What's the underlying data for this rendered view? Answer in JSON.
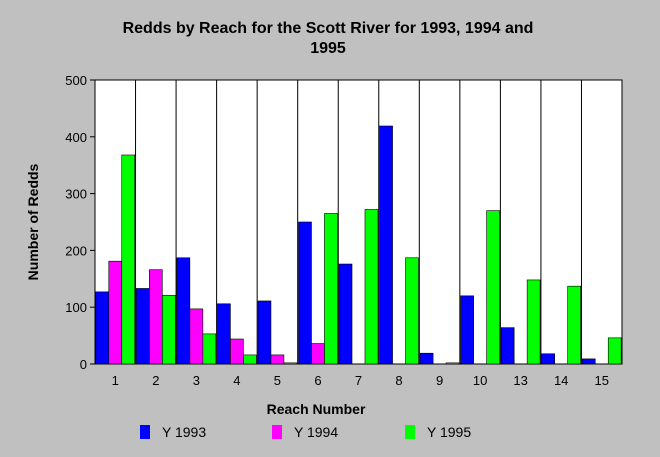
{
  "chart_data": {
    "type": "bar",
    "title": "Redds by Reach for the Scott River for 1993, 1994 and 1995",
    "title_lines": [
      "Redds by Reach for the Scott River for 1993, 1994 and",
      "1995"
    ],
    "xlabel": "Reach Number",
    "ylabel": "Number of Redds",
    "categories": [
      "1",
      "2",
      "3",
      "4",
      "5",
      "6",
      "7",
      "8",
      "9",
      "10",
      "13",
      "14",
      "15"
    ],
    "ylim": [
      0,
      500
    ],
    "yticks": [
      0,
      100,
      200,
      300,
      400,
      500
    ],
    "grid": "vertical separators",
    "legend_position": "bottom",
    "series": [
      {
        "name": "Y 1993",
        "color": "#0000ff",
        "values": [
          127,
          133,
          187,
          106,
          111,
          250,
          176,
          419,
          19,
          120,
          64,
          18,
          9
        ]
      },
      {
        "name": "Y 1994",
        "color": "#ff00ff",
        "values": [
          181,
          166,
          97,
          44,
          16,
          36,
          0,
          0,
          0,
          0,
          0,
          0,
          0
        ]
      },
      {
        "name": "Y 1995",
        "color": "#00ff00",
        "values": [
          368,
          121,
          53,
          16,
          2,
          265,
          272,
          187,
          2,
          270,
          148,
          137,
          46
        ]
      }
    ]
  }
}
